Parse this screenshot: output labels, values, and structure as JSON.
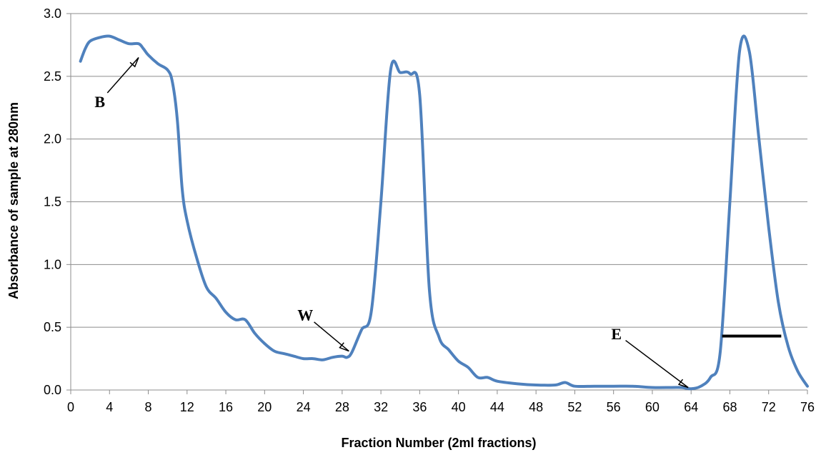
{
  "chart_data": {
    "type": "line",
    "title": "",
    "xlabel": "Fraction Number (2ml fractions)",
    "ylabel": "Absorbance of sample at 280nm",
    "xlim": [
      0,
      76
    ],
    "ylim": [
      0,
      3
    ],
    "xticks": [
      0,
      4,
      8,
      12,
      16,
      20,
      24,
      28,
      32,
      36,
      40,
      44,
      48,
      52,
      56,
      60,
      64,
      68,
      72,
      76
    ],
    "yticks": [
      0,
      0.5,
      1,
      1.5,
      2,
      2.5,
      3
    ],
    "ytick_labels": [
      "0.0",
      "0.5",
      "1.0",
      "1.5",
      "2.0",
      "2.5",
      "3.0"
    ],
    "grid": "horizontal",
    "series": [
      {
        "color": "#4f81bd",
        "x": [
          1,
          1.5,
          2,
          3,
          4,
          5,
          6,
          7,
          7.5,
          8,
          9,
          10,
          10.5,
          11,
          11.5,
          12,
          13,
          14,
          15,
          16,
          17,
          18,
          19,
          20,
          21,
          22,
          23,
          24,
          25,
          26,
          27,
          28,
          28.5,
          29,
          30,
          31,
          32,
          33,
          34,
          35,
          36,
          37,
          38,
          39,
          40,
          41,
          42,
          43,
          44,
          46,
          48,
          50,
          51,
          52,
          54,
          56,
          58,
          60,
          62,
          63,
          64,
          65,
          66,
          67,
          68,
          69,
          70,
          71,
          72,
          73,
          74,
          75,
          76
        ],
        "y": [
          2.62,
          2.72,
          2.78,
          2.81,
          2.82,
          2.79,
          2.76,
          2.76,
          2.72,
          2.67,
          2.6,
          2.55,
          2.45,
          2.15,
          1.6,
          1.35,
          1.05,
          0.82,
          0.73,
          0.62,
          0.56,
          0.56,
          0.45,
          0.37,
          0.31,
          0.29,
          0.27,
          0.25,
          0.25,
          0.24,
          0.26,
          0.27,
          0.26,
          0.3,
          0.48,
          0.62,
          1.5,
          2.55,
          2.53,
          2.52,
          2.35,
          0.8,
          0.42,
          0.32,
          0.23,
          0.18,
          0.1,
          0.1,
          0.07,
          0.05,
          0.04,
          0.04,
          0.06,
          0.03,
          0.03,
          0.03,
          0.03,
          0.02,
          0.02,
          0.02,
          0.01,
          0.03,
          0.1,
          0.3,
          1.5,
          2.7,
          2.7,
          2.0,
          1.3,
          0.7,
          0.35,
          0.15,
          0.03
        ]
      }
    ],
    "annotations": [
      {
        "text": "B",
        "label_x": 3,
        "label_y": 2.3,
        "arrow_x": 7,
        "arrow_y": 2.65
      },
      {
        "text": "W",
        "label_x": 24.2,
        "label_y": 0.6,
        "arrow_x": 28.7,
        "arrow_y": 0.31
      },
      {
        "text": "E",
        "label_x": 56.3,
        "label_y": 0.45,
        "arrow_x": 63.7,
        "arrow_y": 0.02
      }
    ],
    "bar_marker": {
      "x_start": 67.2,
      "x_end": 73.3,
      "y": 0.43
    }
  }
}
